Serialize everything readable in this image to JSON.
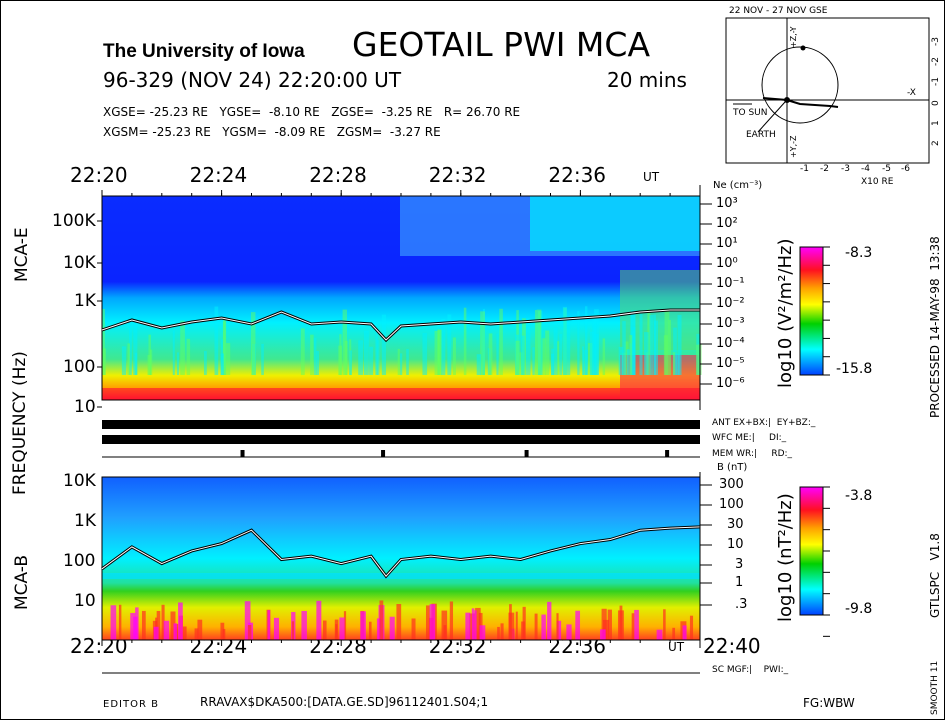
{
  "header": {
    "institution": "The University of Iowa",
    "title": "GEOTAIL PWI MCA",
    "date_line": "96-329 (NOV 24) 22:20:00 UT",
    "duration": "20 mins",
    "gse_line": "XGSE= -25.23 RE   YGSE=  -8.10 RE   ZGSE=  -3.25 RE   R= 26.70 RE",
    "gsm_line": "XGSM= -25.23 RE   YGSM=  -8.09 RE   ZGSM=  -3.27 RE"
  },
  "orbit_plot": {
    "title": "22 NOV - 27 NOV  GSE",
    "x_ticks": [
      "-1",
      "-2",
      "-3",
      "-4",
      "-5",
      "-6"
    ],
    "x_unit": "X10 RE",
    "y_ticks": [
      "-3",
      "-2",
      "-1",
      "0",
      "1",
      "2"
    ],
    "axis_minus_x": "-X",
    "axis_top": "+Z,-Y",
    "axis_bottom": "+Y,-Z",
    "sun_label": "TO SUN",
    "earth_label": "EARTH"
  },
  "side": {
    "frequency_label": "FREQUENCY (Hz)",
    "mca_e_label": "MCA-E",
    "mca_b_label": "MCA-B",
    "processed": "PROCESSED 14-MAY-98  13:38",
    "version": "GTLSPC   V1.8",
    "smooth": "SMOOTH 11"
  },
  "status": {
    "ant": "ANT EX+BX:|  EY+BZ:_",
    "wfc": "WFC ME:|     DI:_",
    "mem": "MEM WR:|     RD:_",
    "sc": "SC MGF:|    PWI:_",
    "mem_marks_minutes": [
      4.7,
      9.4,
      14.2,
      18.9
    ]
  },
  "footer": {
    "editor": "EDITOR B",
    "file": "RRAVAX$DKA500:[DATA.GE.SD]96112401.S04;1",
    "fg": "FG:WBW"
  },
  "chart_data": [
    {
      "type": "heatmap",
      "name": "MCA-E",
      "x_tick_labels": [
        "22:20",
        "22:24",
        "22:28",
        "22:32",
        "22:36"
      ],
      "x_unit": "UT",
      "xlim_minutes": [
        0,
        20
      ],
      "y_tick_labels": [
        "100K",
        "10K",
        "1K",
        "100",
        "10"
      ],
      "ylabel": "FREQUENCY (Hz)",
      "right_axis_label": "Ne (cm⁻³)",
      "right_axis_ticks": [
        "10³",
        "10²",
        "10¹",
        "10⁰",
        "10⁻¹",
        "10⁻²",
        "10⁻³",
        "10⁻⁴",
        "10⁻⁵",
        "10⁻⁶"
      ],
      "colorbar": {
        "label": "log10 (V²/m²/Hz)",
        "max": "-8.3",
        "min": "-15.8",
        "colors": [
          "#ff00ff",
          "#ff1020",
          "#ffa000",
          "#ffff00",
          "#00d000",
          "#00ffff",
          "#0040ff"
        ]
      },
      "trace_log_ne": [
        [
          0,
          -3.3
        ],
        [
          1,
          -2.8
        ],
        [
          2,
          -3.2
        ],
        [
          3,
          -2.9
        ],
        [
          4,
          -2.7
        ],
        [
          5,
          -3.0
        ],
        [
          6,
          -2.4
        ],
        [
          7,
          -3.0
        ],
        [
          8,
          -2.9
        ],
        [
          9,
          -3.0
        ],
        [
          9.5,
          -3.8
        ],
        [
          10,
          -3.1
        ],
        [
          11,
          -3.0
        ],
        [
          12,
          -2.9
        ],
        [
          13,
          -3.0
        ],
        [
          14,
          -2.9
        ],
        [
          15,
          -2.8
        ],
        [
          16,
          -2.7
        ],
        [
          17,
          -2.6
        ],
        [
          18,
          -2.4
        ],
        [
          19,
          -2.3
        ],
        [
          20,
          -2.3
        ]
      ]
    },
    {
      "type": "heatmap",
      "name": "MCA-B",
      "x_tick_labels": [
        "22:20",
        "22:24",
        "22:28",
        "22:32",
        "22:36",
        "22:40"
      ],
      "x_unit": "UT",
      "xlim_minutes": [
        0,
        20
      ],
      "y_tick_labels": [
        "10K",
        "1K",
        "100",
        "10"
      ],
      "right_axis_label": "B (nT)",
      "right_axis_ticks": [
        "300",
        "100",
        "30",
        "10",
        "3",
        "1",
        ".3"
      ],
      "colorbar": {
        "label": "log10 (nT²/Hz)",
        "max": "-3.8",
        "min": "-9.8",
        "colors": [
          "#ff00ff",
          "#ff1020",
          "#ffa000",
          "#ffff00",
          "#00d000",
          "#00ffff",
          "#0040ff"
        ]
      },
      "trace_B_nT": [
        [
          0,
          3
        ],
        [
          1,
          10
        ],
        [
          2,
          4
        ],
        [
          3,
          8
        ],
        [
          4,
          12
        ],
        [
          5,
          25
        ],
        [
          6,
          5
        ],
        [
          7,
          6
        ],
        [
          8,
          4
        ],
        [
          9,
          6
        ],
        [
          9.5,
          2
        ],
        [
          10,
          5
        ],
        [
          11,
          6
        ],
        [
          12,
          5
        ],
        [
          13,
          6
        ],
        [
          14,
          5
        ],
        [
          15,
          8
        ],
        [
          16,
          12
        ],
        [
          17,
          15
        ],
        [
          18,
          25
        ],
        [
          19,
          28
        ],
        [
          20,
          30
        ]
      ]
    }
  ]
}
